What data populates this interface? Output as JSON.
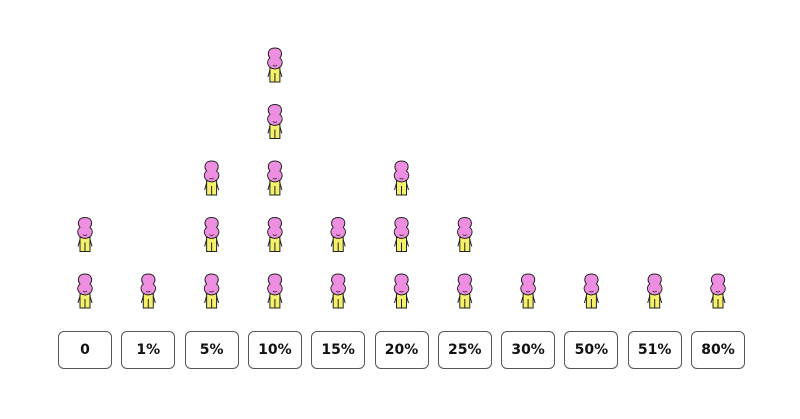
{
  "chart_data": {
    "type": "pictograph",
    "categories": [
      "0",
      "1%",
      "5%",
      "10%",
      "15%",
      "20%",
      "25%",
      "30%",
      "50%",
      "51%",
      "80%"
    ],
    "values": [
      2,
      1,
      3,
      5,
      2,
      3,
      2,
      1,
      1,
      1,
      1
    ],
    "icon": "balloon-person-icon",
    "colors": {
      "head": "#ee8ee0",
      "body": "#f4f06a",
      "outline": "#222222",
      "box_border": "#555555"
    }
  }
}
